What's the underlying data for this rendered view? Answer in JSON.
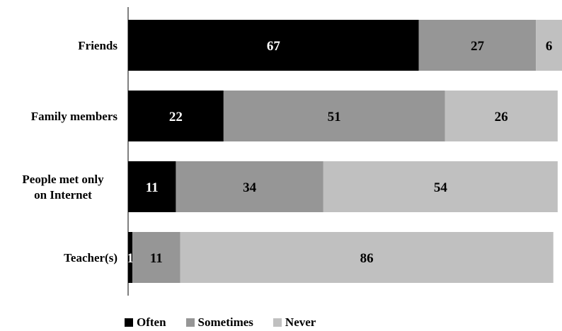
{
  "chart_data": {
    "type": "bar",
    "orientation": "horizontal",
    "stacked": true,
    "categories": [
      "Friends",
      "Family members",
      "People met only on Internet",
      "Teacher(s)"
    ],
    "category_lines": [
      [
        "Friends"
      ],
      [
        "Family members"
      ],
      [
        "People met only",
        "on Internet"
      ],
      [
        "Teacher(s)"
      ]
    ],
    "series": [
      {
        "name": "Often",
        "color": "#000000",
        "label_color": "#ffffff",
        "values": [
          67,
          22,
          11,
          1
        ]
      },
      {
        "name": "Sometimes",
        "color": "#969696",
        "label_color": "#000000",
        "values": [
          27,
          51,
          34,
          11
        ]
      },
      {
        "name": "Never",
        "color": "#c0c0c0",
        "label_color": "#000000",
        "values": [
          6,
          26,
          54,
          86
        ]
      }
    ],
    "xlim": [
      0,
      100
    ],
    "grid": false,
    "legend_position": "bottom"
  }
}
